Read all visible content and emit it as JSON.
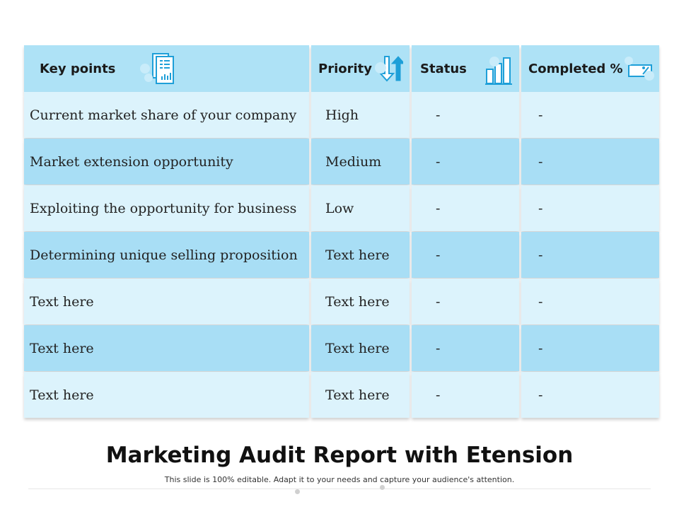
{
  "table": {
    "headers": [
      "Key points",
      "Priority",
      "Status",
      "Completed %"
    ],
    "header_icons": [
      "report-document-icon",
      "priority-arrows-icon",
      "bar-chart-icon",
      "percent-ticket-icon"
    ],
    "rows": [
      [
        "Current market share of your company",
        "High",
        "-",
        "-"
      ],
      [
        "Market extension opportunity",
        "Medium",
        "-",
        "-"
      ],
      [
        "Exploiting the opportunity for business",
        "Low",
        "-",
        "-"
      ],
      [
        "Determining unique selling proposition",
        "Text here",
        "-",
        "-"
      ],
      [
        "Text here",
        "Text here",
        "-",
        "-"
      ],
      [
        "Text here",
        "Text here",
        "-",
        "-"
      ],
      [
        "Text here",
        "Text here",
        "-",
        "-"
      ]
    ]
  },
  "colors": {
    "header_bg": "#aee2f6",
    "row_light": "#dcf3fc",
    "row_dark": "#a8def5",
    "icon_blue": "#1e9fd8"
  },
  "title": "Marketing Audit Report with Etension",
  "subtitle": "This slide is 100% editable. Adapt it to your needs and capture your audience's attention."
}
